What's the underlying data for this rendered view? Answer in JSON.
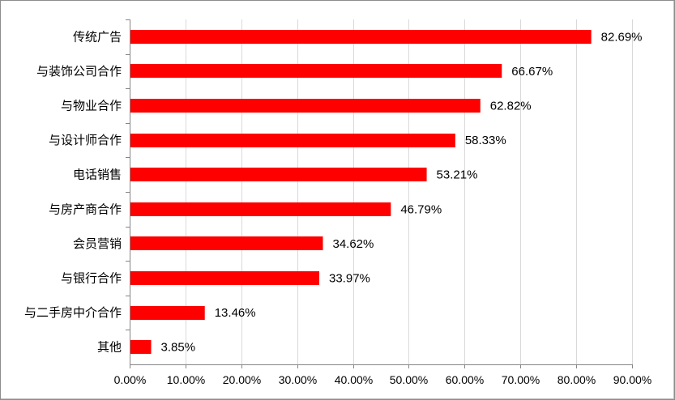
{
  "chart_data": {
    "type": "bar",
    "orientation": "horizontal",
    "categories": [
      "传统广告",
      "与装饰公司合作",
      "与物业合作",
      "与设计师合作",
      "电话销售",
      "与房产商合作",
      "会员营销",
      "与银行合作",
      "与二手房中介合作",
      "其他"
    ],
    "values": [
      82.69,
      66.67,
      62.82,
      58.33,
      53.21,
      46.79,
      34.62,
      33.97,
      13.46,
      3.85
    ],
    "value_labels": [
      "82.69%",
      "66.67%",
      "62.82%",
      "58.33%",
      "53.21%",
      "46.79%",
      "34.62%",
      "33.97%",
      "13.46%",
      "3.85%"
    ],
    "xticks": [
      "0.00%",
      "10.00%",
      "20.00%",
      "30.00%",
      "40.00%",
      "50.00%",
      "60.00%",
      "70.00%",
      "80.00%",
      "90.00%"
    ],
    "xlim": [
      0,
      90
    ],
    "grid": true,
    "bar_color": "#ff0000",
    "title": "",
    "xlabel": "",
    "ylabel": ""
  }
}
